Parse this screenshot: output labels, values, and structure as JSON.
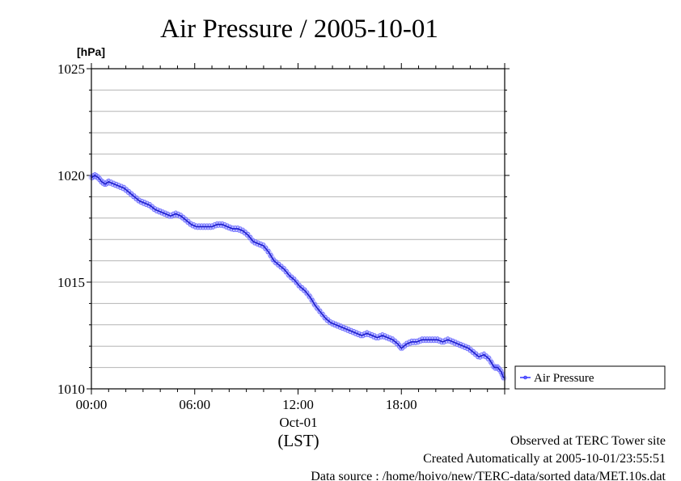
{
  "chart_data": {
    "type": "line",
    "title": "Air Pressure / 2005-10-01",
    "yunit": "[hPa]",
    "ylim": [
      1010,
      1025
    ],
    "yticks": [
      "1010",
      "1015",
      "1020",
      "1025"
    ],
    "xlim_hours": [
      0,
      24
    ],
    "xticks": [
      {
        "hour": 0,
        "label": "00:00"
      },
      {
        "hour": 6,
        "label": "06:00"
      },
      {
        "hour": 12,
        "label": "12:00"
      },
      {
        "hour": 18,
        "label": "18:00"
      }
    ],
    "xdate_label": "Oct-01",
    "xtimezone_label": "(LST)",
    "grid": true,
    "legend_position": "right-bottom",
    "series": [
      {
        "name": "Air Pressure",
        "color": "#3333ff",
        "x_hours": [
          0.0,
          0.2,
          0.4,
          0.6,
          0.8,
          1.0,
          1.3,
          1.6,
          1.9,
          2.2,
          2.5,
          2.8,
          3.1,
          3.4,
          3.7,
          4.0,
          4.3,
          4.6,
          4.9,
          5.2,
          5.5,
          5.8,
          6.1,
          6.4,
          6.7,
          7.0,
          7.3,
          7.6,
          7.9,
          8.2,
          8.5,
          8.8,
          9.1,
          9.4,
          9.7,
          10.0,
          10.3,
          10.6,
          10.9,
          11.2,
          11.5,
          11.8,
          12.1,
          12.4,
          12.7,
          13.0,
          13.3,
          13.6,
          13.9,
          14.2,
          14.5,
          14.8,
          15.1,
          15.4,
          15.7,
          16.0,
          16.3,
          16.6,
          16.9,
          17.2,
          17.5,
          17.8,
          18.0,
          18.3,
          18.6,
          18.9,
          19.2,
          19.5,
          19.8,
          20.1,
          20.4,
          20.7,
          21.0,
          21.3,
          21.6,
          21.9,
          22.2,
          22.5,
          22.8,
          23.1,
          23.4,
          23.6,
          23.8,
          23.95
        ],
        "values": [
          1019.9,
          1020.0,
          1019.9,
          1019.7,
          1019.6,
          1019.7,
          1019.6,
          1019.5,
          1019.4,
          1019.2,
          1019.0,
          1018.8,
          1018.7,
          1018.6,
          1018.4,
          1018.3,
          1018.2,
          1018.1,
          1018.2,
          1018.1,
          1017.9,
          1017.7,
          1017.6,
          1017.6,
          1017.6,
          1017.6,
          1017.7,
          1017.7,
          1017.6,
          1017.5,
          1017.5,
          1017.4,
          1017.2,
          1016.9,
          1016.8,
          1016.7,
          1016.4,
          1016.0,
          1015.8,
          1015.6,
          1015.3,
          1015.1,
          1014.8,
          1014.6,
          1014.3,
          1013.9,
          1013.6,
          1013.3,
          1013.1,
          1013.0,
          1012.9,
          1012.8,
          1012.7,
          1012.6,
          1012.5,
          1012.6,
          1012.5,
          1012.4,
          1012.5,
          1012.4,
          1012.3,
          1012.1,
          1011.9,
          1012.1,
          1012.2,
          1012.2,
          1012.3,
          1012.3,
          1012.3,
          1012.3,
          1012.2,
          1012.3,
          1012.2,
          1012.1,
          1012.0,
          1011.9,
          1011.7,
          1011.5,
          1011.6,
          1011.4,
          1011.0,
          1011.0,
          1010.8,
          1010.5
        ]
      }
    ]
  },
  "footer": {
    "observed": "Observed at TERC Tower site",
    "created": "Created Automatically at 2005-10-01/23:55:51",
    "source": "Data source : /home/hoivo/new/TERC-data/sorted  data/MET.10s.dat"
  }
}
